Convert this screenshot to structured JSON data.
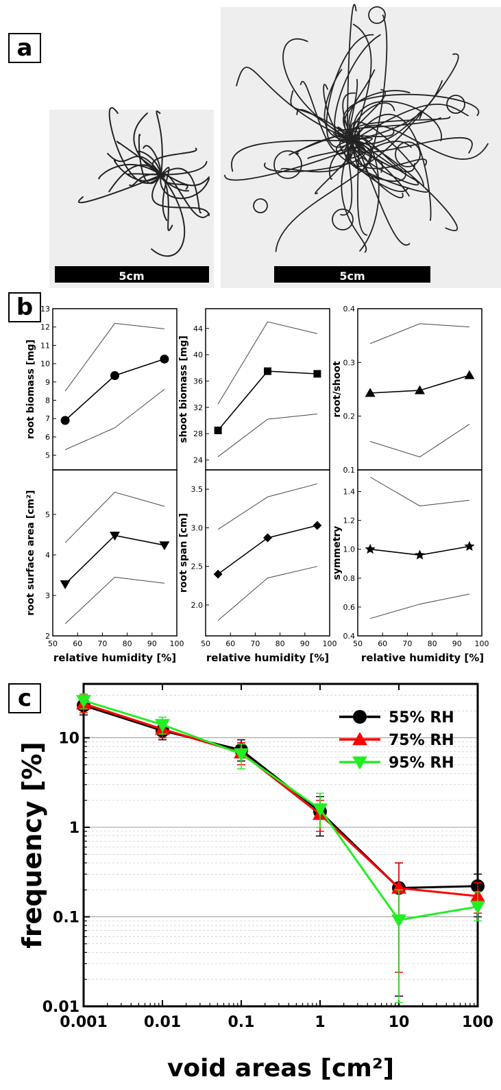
{
  "panels": {
    "a": "a",
    "b": "b",
    "c": "c"
  },
  "photos": {
    "left_scale_label": "5cm",
    "right_scale_label": "5cm"
  },
  "chart_data": [
    {
      "type": "line",
      "panel": "b",
      "title": "",
      "xlabel": "relative humidity [%]",
      "ylabel": "root biomass [mg]",
      "x": [
        55,
        75,
        95
      ],
      "xlim": [
        50,
        100
      ],
      "xticks": [
        50,
        60,
        70,
        80,
        90,
        100
      ],
      "ylim": [
        4.2,
        13
      ],
      "yticks": [
        5,
        6,
        7,
        8,
        9,
        10,
        11,
        12,
        13
      ],
      "marker": "circle",
      "series": [
        {
          "values": [
            6.9,
            9.35,
            10.25
          ]
        },
        {
          "values": [
            8.5,
            12.2,
            11.9
          ],
          "style": "thin"
        },
        {
          "values": [
            5.3,
            6.5,
            8.6
          ],
          "style": "thin"
        }
      ]
    },
    {
      "type": "line",
      "panel": "b",
      "title": "",
      "xlabel": "relative humidity [%]",
      "ylabel": "shoot biomass [mg]",
      "x": [
        55,
        75,
        95
      ],
      "xlim": [
        50,
        100
      ],
      "xticks": [
        50,
        60,
        70,
        80,
        90,
        100
      ],
      "ylim": [
        22.5,
        47
      ],
      "yticks": [
        24,
        28,
        32,
        36,
        40,
        44
      ],
      "marker": "square",
      "series": [
        {
          "values": [
            28.5,
            37.5,
            37.1
          ]
        },
        {
          "values": [
            32.5,
            45.0,
            43.2
          ],
          "style": "thin"
        },
        {
          "values": [
            24.5,
            30.2,
            31.0
          ],
          "style": "thin"
        }
      ]
    },
    {
      "type": "line",
      "panel": "b",
      "title": "",
      "xlabel": "relative humidity [%]",
      "ylabel": "root/shoot",
      "x": [
        55,
        75,
        95
      ],
      "xlim": [
        50,
        100
      ],
      "xticks": [
        50,
        60,
        70,
        80,
        90,
        100
      ],
      "ylim": [
        0.1,
        0.4
      ],
      "yticks": [
        0.1,
        0.2,
        0.3,
        0.4
      ],
      "marker": "triangle-up",
      "series": [
        {
          "values": [
            0.243,
            0.248,
            0.276
          ]
        },
        {
          "values": [
            0.335,
            0.372,
            0.366
          ],
          "style": "thin"
        },
        {
          "values": [
            0.153,
            0.124,
            0.185
          ],
          "style": "thin"
        }
      ]
    },
    {
      "type": "line",
      "panel": "b",
      "title": "",
      "xlabel": "relative humidity [%]",
      "ylabel": "root surface area [cm²]",
      "x": [
        55,
        75,
        95
      ],
      "xlim": [
        50,
        100
      ],
      "xticks": [
        50,
        60,
        70,
        80,
        90,
        100
      ],
      "ylim": [
        2,
        6.1
      ],
      "yticks": [
        2,
        3,
        4,
        5
      ],
      "marker": "triangle-down",
      "series": [
        {
          "values": [
            3.28,
            4.48,
            4.24
          ]
        },
        {
          "values": [
            4.3,
            5.55,
            5.2
          ],
          "style": "thin"
        },
        {
          "values": [
            2.3,
            3.45,
            3.3
          ],
          "style": "thin"
        }
      ]
    },
    {
      "type": "line",
      "panel": "b",
      "title": "",
      "xlabel": "relative humidity [%]",
      "ylabel": "root span [cm]",
      "x": [
        55,
        75,
        95
      ],
      "xlim": [
        50,
        100
      ],
      "xticks": [
        50,
        60,
        70,
        80,
        90,
        100
      ],
      "ylim": [
        1.6,
        3.75
      ],
      "yticks": [
        2.0,
        2.5,
        3.0,
        3.5
      ],
      "marker": "diamond",
      "series": [
        {
          "values": [
            2.4,
            2.87,
            3.03
          ]
        },
        {
          "values": [
            2.98,
            3.4,
            3.57
          ],
          "style": "thin"
        },
        {
          "values": [
            1.8,
            2.35,
            2.5
          ],
          "style": "thin"
        }
      ]
    },
    {
      "type": "line",
      "panel": "b",
      "title": "",
      "xlabel": "relative humidity [%]",
      "ylabel": "symmetry",
      "x": [
        55,
        75,
        95
      ],
      "xlim": [
        50,
        100
      ],
      "xticks": [
        50,
        60,
        70,
        80,
        90,
        100
      ],
      "ylim": [
        0.4,
        1.55
      ],
      "yticks": [
        0.4,
        0.6,
        0.8,
        1.0,
        1.2,
        1.4
      ],
      "marker": "star",
      "series": [
        {
          "values": [
            1.0,
            0.96,
            1.02
          ]
        },
        {
          "values": [
            1.5,
            1.3,
            1.34
          ],
          "style": "thin"
        },
        {
          "values": [
            0.52,
            0.62,
            0.69
          ],
          "style": "thin"
        }
      ]
    },
    {
      "type": "line",
      "panel": "c",
      "title": "",
      "xlabel": "void areas [cm²]",
      "ylabel": "frequency [%]",
      "xscale": "log",
      "yscale": "log",
      "xlim": [
        0.001,
        100
      ],
      "ylim": [
        0.01,
        40
      ],
      "xticks": [
        0.001,
        0.01,
        0.1,
        1,
        10,
        100
      ],
      "xtick_labels": [
        "0.001",
        "0.01",
        "0.1",
        "1",
        "10",
        "100"
      ],
      "yticks": [
        0.01,
        0.1,
        1,
        10
      ],
      "ytick_labels": [
        "0.01",
        "0.1",
        "1",
        "10"
      ],
      "grid": true,
      "legend_position": "top-right",
      "x": [
        0.001,
        0.01,
        0.1,
        1,
        10,
        100
      ],
      "series": [
        {
          "name": "55% RH",
          "color": "#000000",
          "marker": "circle",
          "values": [
            23,
            12,
            7.3,
            1.5,
            0.21,
            0.22
          ],
          "error": [
            [
              18,
              29
            ],
            [
              9.5,
              15
            ],
            [
              5.5,
              9.5
            ],
            [
              0.8,
              2.2
            ],
            [
              0.013,
              0.4
            ],
            [
              0.1,
              0.3
            ]
          ]
        },
        {
          "name": "75% RH",
          "color": "#ff0000",
          "marker": "triangle-up",
          "values": [
            24,
            12.5,
            6.8,
            1.4,
            0.21,
            0.17
          ],
          "error": [
            [
              19,
              30
            ],
            [
              10,
              15.5
            ],
            [
              5,
              8.8
            ],
            [
              0.9,
              2.0
            ],
            [
              0.024,
              0.4
            ],
            [
              0.11,
              0.24
            ]
          ]
        },
        {
          "name": "95% RH",
          "color": "#22ee22",
          "marker": "triangle-down",
          "values": [
            26,
            14,
            6.6,
            1.6,
            0.092,
            0.13
          ],
          "error": [
            [
              21,
              31
            ],
            [
              11,
              17
            ],
            [
              4.5,
              8.5
            ],
            [
              1.0,
              2.4
            ],
            [
              0.011,
              0.2
            ],
            [
              0.09,
              0.19
            ]
          ]
        }
      ]
    }
  ]
}
